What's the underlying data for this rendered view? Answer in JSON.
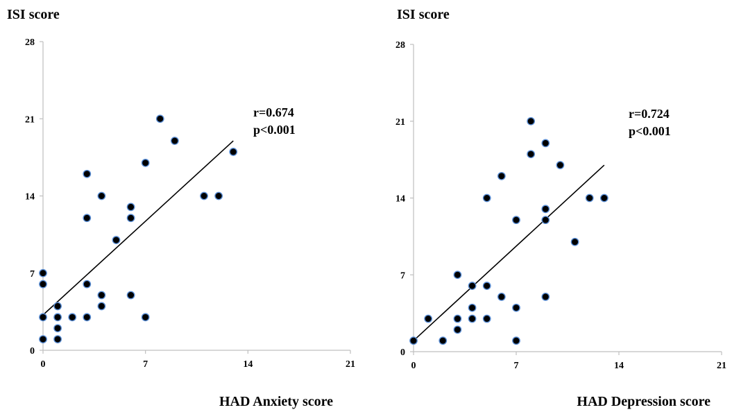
{
  "chart_data": [
    {
      "type": "scatter",
      "ylabel": "ISI score",
      "xlabel": "HAD Anxiety score",
      "xlim": [
        0,
        21
      ],
      "ylim": [
        0,
        28
      ],
      "xticks": [
        "0",
        "7",
        "14",
        "21"
      ],
      "yticks": [
        "0",
        "7",
        "14",
        "21",
        "28"
      ],
      "annotations": [
        "r=0.674",
        "p<0.001"
      ],
      "points": [
        [
          0,
          7
        ],
        [
          0,
          6
        ],
        [
          0,
          3
        ],
        [
          0,
          1
        ],
        [
          1,
          4
        ],
        [
          1,
          3
        ],
        [
          1,
          2
        ],
        [
          1,
          1
        ],
        [
          2,
          3
        ],
        [
          3,
          16
        ],
        [
          3,
          12
        ],
        [
          3,
          6
        ],
        [
          3,
          3
        ],
        [
          4,
          14
        ],
        [
          4,
          5
        ],
        [
          4,
          4
        ],
        [
          5,
          10
        ],
        [
          6,
          13
        ],
        [
          6,
          12
        ],
        [
          6,
          5
        ],
        [
          7,
          17
        ],
        [
          7,
          3
        ],
        [
          8,
          21
        ],
        [
          9,
          19
        ],
        [
          11,
          14
        ],
        [
          12,
          14
        ],
        [
          13,
          18
        ]
      ],
      "trendline": [
        [
          0,
          3.2
        ],
        [
          13,
          19
        ]
      ]
    },
    {
      "type": "scatter",
      "ylabel": "ISI score",
      "xlabel": "HAD Depression score",
      "xlim": [
        0,
        21
      ],
      "ylim": [
        0,
        28
      ],
      "xticks": [
        "0",
        "7",
        "14",
        "21"
      ],
      "yticks": [
        "0",
        "7",
        "14",
        "21",
        "28"
      ],
      "annotations": [
        "r=0.724",
        "p<0.001"
      ],
      "points": [
        [
          0,
          1
        ],
        [
          1,
          3
        ],
        [
          2,
          1
        ],
        [
          3,
          7
        ],
        [
          3,
          3
        ],
        [
          3,
          2
        ],
        [
          4,
          6
        ],
        [
          4,
          4
        ],
        [
          4,
          3
        ],
        [
          5,
          14
        ],
        [
          5,
          6
        ],
        [
          5,
          3
        ],
        [
          6,
          16
        ],
        [
          6,
          5
        ],
        [
          7,
          12
        ],
        [
          7,
          4
        ],
        [
          7,
          1
        ],
        [
          8,
          21
        ],
        [
          8,
          18
        ],
        [
          9,
          19
        ],
        [
          9,
          13
        ],
        [
          9,
          12
        ],
        [
          9,
          5
        ],
        [
          10,
          17
        ],
        [
          11,
          10
        ],
        [
          12,
          14
        ],
        [
          13,
          14
        ]
      ],
      "trendline": [
        [
          0,
          1
        ],
        [
          13,
          17
        ]
      ]
    }
  ]
}
